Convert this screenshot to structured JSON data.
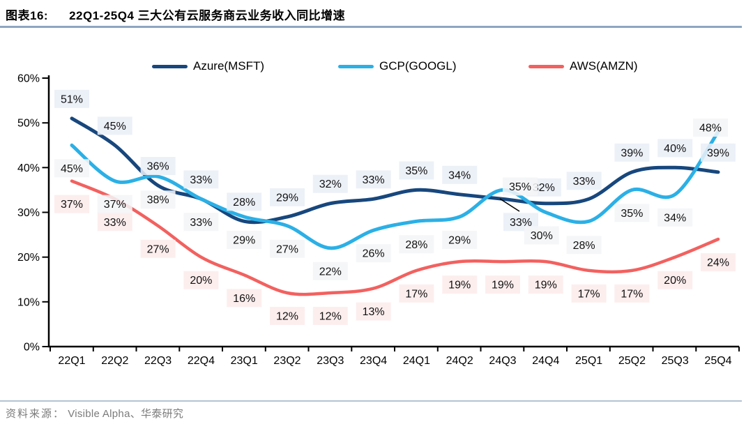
{
  "header": {
    "figure_label": "图表16:",
    "title": "22Q1-25Q4 三大公有云服务商云业务收入同比增速"
  },
  "footer": {
    "source_label": "资料来源：",
    "source_text": "Visible Alpha、华泰研究"
  },
  "colors": {
    "azure_line": "#17477d",
    "gcp_line": "#2bb0e6",
    "aws_line": "#f2615f",
    "azure_label_bg": "#e9eff7",
    "gcp_label_bg": "#f3f5f7",
    "aws_label_bg": "#fdebeb",
    "axis": "#000000",
    "label_text": "#111111",
    "title_rule": "#8ea6c1",
    "footer_rule": "#b3c2d3"
  },
  "chart_data": {
    "type": "line",
    "title": "22Q1-25Q4 三大公有云服务商云业务收入同比增速",
    "categories": [
      "22Q1",
      "22Q2",
      "22Q3",
      "22Q4",
      "23Q1",
      "23Q2",
      "23Q3",
      "23Q4",
      "24Q1",
      "24Q2",
      "24Q3",
      "24Q4",
      "25Q1",
      "25Q2",
      "25Q3",
      "25Q4"
    ],
    "series": [
      {
        "name": "Azure(MSFT)",
        "color": "#17477d",
        "values": [
          51,
          45,
          36,
          33,
          28,
          29,
          32,
          33,
          35,
          34,
          33,
          32,
          33,
          39,
          40,
          39
        ]
      },
      {
        "name": "GCP(GOOGL)",
        "color": "#2bb0e6",
        "values": [
          45,
          37,
          38,
          33,
          29,
          27,
          22,
          26,
          28,
          29,
          35,
          30,
          28,
          35,
          34,
          48
        ]
      },
      {
        "name": "AWS(AMZN)",
        "color": "#f2615f",
        "values": [
          37,
          33,
          27,
          20,
          16,
          12,
          12,
          13,
          17,
          19,
          19,
          19,
          17,
          17,
          20,
          24
        ]
      }
    ],
    "unit": "%",
    "ylim": [
      0,
      60
    ],
    "ytick_step": 10,
    "yticklabels": [
      "0%",
      "10%",
      "20%",
      "30%",
      "40%",
      "50%",
      "60%"
    ],
    "xlabel": "",
    "ylabel": "",
    "grid": false,
    "data_labels": true,
    "legend_position": "top",
    "line_style": "smooth"
  }
}
